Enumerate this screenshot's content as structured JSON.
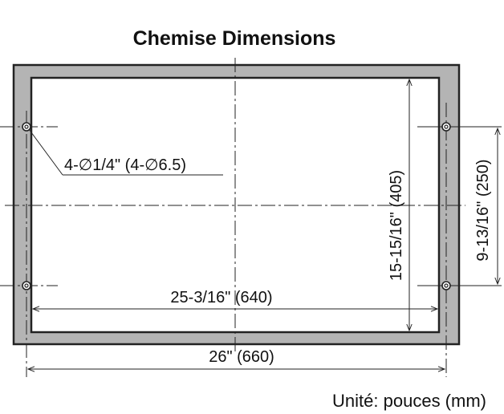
{
  "title": "Chemise Dimensions",
  "hole_callout": "4-∅1/4\" (4-∅6.5)",
  "dims": {
    "inner_width": "25-3/16\" (640)",
    "outer_width": "26\" (660)",
    "inner_height": "15-15/16\" (405)",
    "hole_spacing": "9-13/16\" (250)"
  },
  "unit_note": "Unité: pouces (mm)",
  "colors": {
    "frame_fill": "#b4b4b4",
    "line": "#222222",
    "background": "#ffffff"
  }
}
